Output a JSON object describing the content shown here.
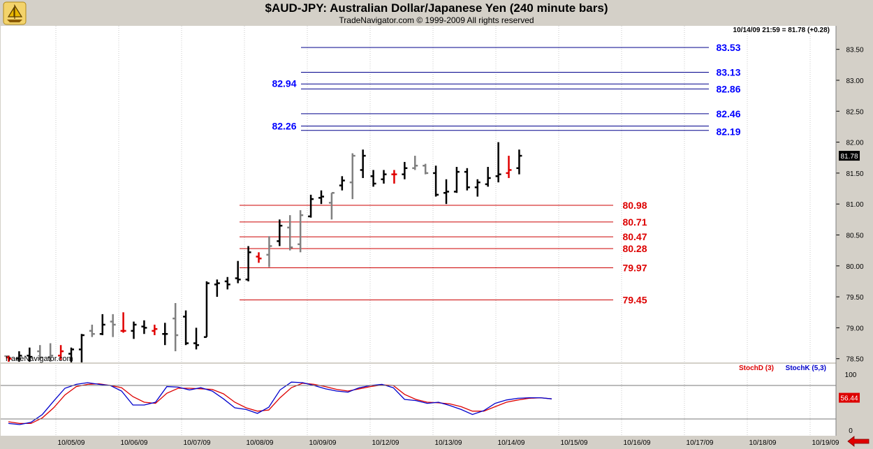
{
  "header": {
    "title": "$AUD-JPY:  Australian Dollar/Japanese Yen  (240 minute bars)",
    "subtitle": "TradeNavigator.com © 1999-2009 All rights reserved",
    "watermark": "TradeNavigator.com",
    "quote_info": "10/14/09 21:59 = 81.78 (+0.28)"
  },
  "colors": {
    "up_bar": "#000000",
    "down_bar": "#808080",
    "doji_bar": "#e00000",
    "resistance_line": "#00008b",
    "resistance_label": "#0000ff",
    "support_line": "#cc0000",
    "support_label": "#dd0000",
    "stochD": "#dd0000",
    "stochK": "#0000cc",
    "background": "#ffffff",
    "frame": "#d4d0c8"
  },
  "chart_data": [
    {
      "type": "bar",
      "subtype": "ohlc",
      "title": "$AUD-JPY:  Australian Dollar/Japanese Yen  (240 minute bars)",
      "x_ticks": [
        "10/05/09",
        "10/06/09",
        "10/07/09",
        "10/08/09",
        "10/09/09",
        "10/12/09",
        "10/13/09",
        "10/14/09",
        "10/15/09",
        "10/16/09",
        "10/17/09",
        "10/18/09",
        "10/19/09"
      ],
      "y_ticks": [
        "78.50",
        "79.00",
        "79.50",
        "80.00",
        "80.50",
        "81.00",
        "81.50",
        "82.00",
        "82.50",
        "83.00",
        "83.50"
      ],
      "ylim": [
        78.44,
        83.88
      ],
      "last_price_tag": "81.78",
      "bars": [
        {
          "o": 78.52,
          "h": 78.55,
          "l": 78.45,
          "c": 78.5,
          "k": "r"
        },
        {
          "o": 78.5,
          "h": 78.62,
          "l": 78.45,
          "c": 78.55,
          "k": "u"
        },
        {
          "o": 78.55,
          "h": 78.68,
          "l": 78.45,
          "c": 78.53,
          "k": "u"
        },
        {
          "o": 78.62,
          "h": 78.72,
          "l": 78.48,
          "c": 78.52,
          "k": "d"
        },
        {
          "o": 78.52,
          "h": 78.75,
          "l": 78.45,
          "c": 78.55,
          "k": "d"
        },
        {
          "o": 78.55,
          "h": 78.72,
          "l": 78.48,
          "c": 78.62,
          "k": "r"
        },
        {
          "o": 78.58,
          "h": 78.68,
          "l": 78.4,
          "c": 78.65,
          "k": "u"
        },
        {
          "o": 78.65,
          "h": 78.9,
          "l": 78.3,
          "c": 78.88,
          "k": "u"
        },
        {
          "o": 78.95,
          "h": 79.05,
          "l": 78.85,
          "c": 78.9,
          "k": "d"
        },
        {
          "o": 78.9,
          "h": 79.22,
          "l": 78.88,
          "c": 79.05,
          "k": "u"
        },
        {
          "o": 79.1,
          "h": 79.22,
          "l": 78.85,
          "c": 79.05,
          "k": "d"
        },
        {
          "o": 78.95,
          "h": 79.25,
          "l": 78.92,
          "c": 78.95,
          "k": "r"
        },
        {
          "o": 78.95,
          "h": 79.1,
          "l": 78.82,
          "c": 79.05,
          "k": "u"
        },
        {
          "o": 79.02,
          "h": 79.12,
          "l": 78.9,
          "c": 79.0,
          "k": "u"
        },
        {
          "o": 78.95,
          "h": 79.05,
          "l": 78.88,
          "c": 78.98,
          "k": "r"
        },
        {
          "o": 78.9,
          "h": 79.08,
          "l": 78.72,
          "c": 78.9,
          "k": "u"
        },
        {
          "o": 79.15,
          "h": 79.4,
          "l": 78.62,
          "c": 78.88,
          "k": "d"
        },
        {
          "o": 79.18,
          "h": 79.28,
          "l": 78.72,
          "c": 78.75,
          "k": "u"
        },
        {
          "o": 78.75,
          "h": 79.0,
          "l": 78.65,
          "c": 78.72,
          "k": "u"
        },
        {
          "o": 78.85,
          "h": 79.75,
          "l": 78.85,
          "c": 79.72,
          "k": "u"
        },
        {
          "o": 79.7,
          "h": 79.78,
          "l": 79.5,
          "c": 79.72,
          "k": "u"
        },
        {
          "o": 79.75,
          "h": 79.82,
          "l": 79.62,
          "c": 79.7,
          "k": "u"
        },
        {
          "o": 79.8,
          "h": 80.08,
          "l": 79.72,
          "c": 79.78,
          "k": "u"
        },
        {
          "o": 79.78,
          "h": 80.32,
          "l": 79.75,
          "c": 80.22,
          "k": "u"
        },
        {
          "o": 80.15,
          "h": 80.22,
          "l": 80.05,
          "c": 80.12,
          "k": "r"
        },
        {
          "o": 80.18,
          "h": 80.48,
          "l": 79.98,
          "c": 80.32,
          "k": "d"
        },
        {
          "o": 80.4,
          "h": 80.75,
          "l": 80.32,
          "c": 80.65,
          "k": "u"
        },
        {
          "o": 80.62,
          "h": 80.82,
          "l": 80.25,
          "c": 80.3,
          "k": "d"
        },
        {
          "o": 80.35,
          "h": 80.9,
          "l": 80.22,
          "c": 80.82,
          "k": "d"
        },
        {
          "o": 80.8,
          "h": 81.15,
          "l": 80.78,
          "c": 81.08,
          "k": "u"
        },
        {
          "o": 81.1,
          "h": 81.22,
          "l": 81.0,
          "c": 81.12,
          "k": "u"
        },
        {
          "o": 81.02,
          "h": 81.18,
          "l": 80.75,
          "c": 81.18,
          "k": "d"
        },
        {
          "o": 81.3,
          "h": 81.45,
          "l": 81.22,
          "c": 81.38,
          "k": "u"
        },
        {
          "o": 81.35,
          "h": 81.82,
          "l": 81.08,
          "c": 81.78,
          "k": "d"
        },
        {
          "o": 81.55,
          "h": 81.88,
          "l": 81.42,
          "c": 81.78,
          "k": "u"
        },
        {
          "o": 81.45,
          "h": 81.55,
          "l": 81.28,
          "c": 81.33,
          "k": "u"
        },
        {
          "o": 81.4,
          "h": 81.55,
          "l": 81.33,
          "c": 81.48,
          "k": "u"
        },
        {
          "o": 81.48,
          "h": 81.55,
          "l": 81.33,
          "c": 81.48,
          "k": "r"
        },
        {
          "o": 81.48,
          "h": 81.68,
          "l": 81.4,
          "c": 81.58,
          "k": "u"
        },
        {
          "o": 81.58,
          "h": 81.78,
          "l": 81.55,
          "c": 81.62,
          "k": "d"
        },
        {
          "o": 81.62,
          "h": 81.65,
          "l": 81.48,
          "c": 81.5,
          "k": "d"
        },
        {
          "o": 81.5,
          "h": 81.62,
          "l": 81.12,
          "c": 81.15,
          "k": "u"
        },
        {
          "o": 81.18,
          "h": 81.4,
          "l": 81.0,
          "c": 81.2,
          "k": "u"
        },
        {
          "o": 81.2,
          "h": 81.6,
          "l": 81.18,
          "c": 81.52,
          "k": "u"
        },
        {
          "o": 81.52,
          "h": 81.58,
          "l": 81.22,
          "c": 81.27,
          "k": "u"
        },
        {
          "o": 81.27,
          "h": 81.4,
          "l": 81.12,
          "c": 81.35,
          "k": "u"
        },
        {
          "o": 81.32,
          "h": 81.6,
          "l": 81.28,
          "c": 81.42,
          "k": "u"
        },
        {
          "o": 81.45,
          "h": 82.0,
          "l": 81.35,
          "c": 81.48,
          "k": "u"
        },
        {
          "o": 81.5,
          "h": 81.78,
          "l": 81.42,
          "c": 81.55,
          "k": "r"
        },
        {
          "o": 81.58,
          "h": 81.88,
          "l": 81.48,
          "c": 81.78,
          "k": "u"
        }
      ],
      "resistance_levels": [
        {
          "value": 83.53,
          "label": "83.53"
        },
        {
          "value": 83.13,
          "label": "83.13"
        },
        {
          "value": 82.94,
          "label": "82.94"
        },
        {
          "value": 82.86,
          "label": "82.86"
        },
        {
          "value": 82.46,
          "label": "82.46"
        },
        {
          "value": 82.26,
          "label": "82.26"
        },
        {
          "value": 82.19,
          "label": "82.19"
        }
      ],
      "support_levels": [
        {
          "value": 80.98,
          "label": "80.98"
        },
        {
          "value": 80.71,
          "label": "80.71"
        },
        {
          "value": 80.47,
          "label": "80.47"
        },
        {
          "value": 80.28,
          "label": "80.28"
        },
        {
          "value": 79.97,
          "label": "79.97"
        },
        {
          "value": 79.45,
          "label": "79.45"
        }
      ]
    },
    {
      "type": "line",
      "legend": [
        {
          "name": "StochD (3)"
        },
        {
          "name": "StochK (5,3)"
        }
      ],
      "y_ticks": [
        "100",
        "0"
      ],
      "reference_lines": [
        80,
        20
      ],
      "ylim": [
        0,
        100
      ],
      "last_value_tag": "56.44",
      "series": [
        {
          "name": "StochK (5,3)",
          "values": [
            12,
            10,
            14,
            28,
            52,
            75,
            82,
            85,
            82,
            80,
            70,
            45,
            45,
            50,
            78,
            77,
            72,
            76,
            70,
            56,
            40,
            37,
            30,
            41,
            72,
            86,
            85,
            80,
            74,
            70,
            68,
            76,
            80,
            82,
            76,
            55,
            53,
            48,
            50,
            44,
            37,
            28,
            35,
            48,
            54,
            57,
            58,
            58,
            56
          ]
        },
        {
          "name": "StochD (3)",
          "values": [
            15,
            12,
            12,
            22,
            40,
            63,
            78,
            82,
            83,
            80,
            76,
            60,
            50,
            48,
            66,
            75,
            75,
            74,
            73,
            65,
            50,
            40,
            34,
            36,
            58,
            76,
            84,
            82,
            78,
            73,
            70,
            74,
            78,
            81,
            80,
            64,
            55,
            50,
            49,
            47,
            42,
            34,
            34,
            42,
            50,
            54,
            57,
            58,
            56
          ]
        }
      ]
    }
  ]
}
